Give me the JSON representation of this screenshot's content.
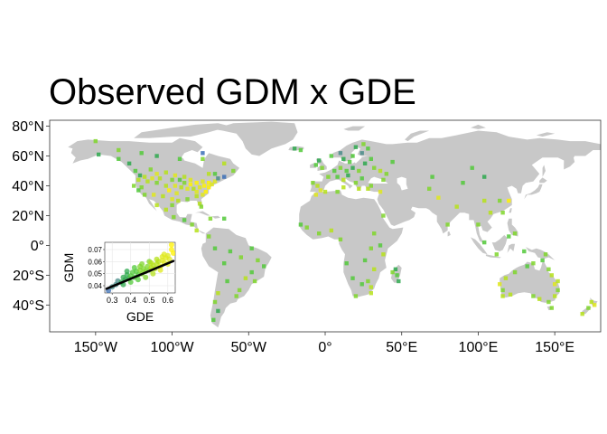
{
  "title": "Observed GDM x GDE",
  "map": {
    "lat_ticks": [
      "80°N",
      "60°N",
      "40°N",
      "20°N",
      "0°",
      "20°S",
      "40°S"
    ],
    "lat_values": [
      80,
      60,
      40,
      20,
      0,
      -20,
      -40
    ],
    "lon_ticks": [
      "150°W",
      "100°W",
      "50°W",
      "0°",
      "50°E",
      "100°E",
      "150°E"
    ],
    "lon_values": [
      -150,
      -100,
      -50,
      0,
      50,
      100,
      150
    ],
    "xlim": [
      -180,
      180
    ],
    "ylim": [
      -58,
      84
    ],
    "land_color": "#c8c8c8",
    "point_palette": [
      "#3b6fb6",
      "#4a8c8a",
      "#2ea84e",
      "#52c93a",
      "#7fd62c",
      "#b6e21a",
      "#dfe81c",
      "#fff200"
    ],
    "points": [
      [
        -124,
        50,
        3
      ],
      [
        -121,
        47,
        2
      ],
      [
        -118,
        46,
        5
      ],
      [
        -114,
        51,
        4
      ],
      [
        -110,
        48,
        6
      ],
      [
        -104,
        49,
        5
      ],
      [
        -98,
        47,
        6
      ],
      [
        -92,
        46,
        5
      ],
      [
        -88,
        44,
        6
      ],
      [
        -84,
        42,
        7
      ],
      [
        -80,
        43,
        6
      ],
      [
        -76,
        42,
        7
      ],
      [
        -72,
        43,
        6
      ],
      [
        -70,
        45,
        1
      ],
      [
        -66,
        46,
        0
      ],
      [
        -82,
        39,
        6
      ],
      [
        -86,
        38,
        5
      ],
      [
        -90,
        38,
        6
      ],
      [
        -94,
        39,
        5
      ],
      [
        -98,
        40,
        6
      ],
      [
        -104,
        40,
        5
      ],
      [
        -110,
        42,
        4
      ],
      [
        -116,
        43,
        5
      ],
      [
        -120,
        39,
        4
      ],
      [
        -122,
        37,
        3
      ],
      [
        -118,
        34,
        4
      ],
      [
        -112,
        34,
        6
      ],
      [
        -106,
        33,
        5
      ],
      [
        -100,
        31,
        6
      ],
      [
        -96,
        30,
        5
      ],
      [
        -90,
        31,
        4
      ],
      [
        -84,
        33,
        5
      ],
      [
        -80,
        34,
        6
      ],
      [
        -78,
        36,
        7
      ],
      [
        -82,
        28,
        5
      ],
      [
        -81,
        26,
        4
      ],
      [
        -97,
        35,
        6
      ],
      [
        -102,
        37,
        7
      ],
      [
        -88,
        41,
        7
      ],
      [
        -76,
        39,
        7
      ],
      [
        -74,
        41,
        6
      ],
      [
        -92,
        42,
        4
      ],
      [
        -95,
        44,
        3
      ],
      [
        -100,
        44,
        4
      ],
      [
        -108,
        45,
        5
      ],
      [
        -113,
        45,
        6
      ],
      [
        -122,
        44,
        5
      ],
      [
        -125,
        40,
        4
      ],
      [
        -79,
        40,
        7
      ],
      [
        -84,
        36,
        6
      ],
      [
        -128,
        55,
        2
      ],
      [
        -135,
        58,
        3
      ],
      [
        -148,
        61,
        2
      ],
      [
        -120,
        62,
        3
      ],
      [
        -110,
        60,
        2
      ],
      [
        -95,
        58,
        3
      ],
      [
        -80,
        58,
        4
      ],
      [
        -66,
        55,
        5
      ],
      [
        -60,
        50,
        4
      ],
      [
        -76,
        48,
        5
      ],
      [
        -72,
        48,
        3
      ],
      [
        -135,
        64,
        4
      ],
      [
        -150,
        70,
        4
      ],
      [
        -80,
        62,
        0
      ],
      [
        -104,
        24,
        5
      ],
      [
        -99,
        19,
        4
      ],
      [
        -92,
        17,
        3
      ],
      [
        -87,
        14,
        4
      ],
      [
        -84,
        10,
        5
      ],
      [
        -75,
        18,
        4
      ],
      [
        -66,
        18,
        3
      ],
      [
        -100,
        27,
        4
      ],
      [
        -110,
        27,
        5
      ],
      [
        -76,
        6,
        4
      ],
      [
        -72,
        -2,
        3
      ],
      [
        -62,
        -4,
        3
      ],
      [
        -55,
        -8,
        4
      ],
      [
        -48,
        -2,
        3
      ],
      [
        -44,
        -10,
        4
      ],
      [
        -40,
        -14,
        3
      ],
      [
        -48,
        -18,
        3
      ],
      [
        -52,
        -22,
        5
      ],
      [
        -46,
        -24,
        4
      ],
      [
        -56,
        -30,
        4
      ],
      [
        -64,
        -24,
        3
      ],
      [
        -70,
        -32,
        5
      ],
      [
        -72,
        -38,
        4
      ],
      [
        -70,
        -44,
        2
      ],
      [
        -73,
        -50,
        3
      ],
      [
        -58,
        -34,
        4
      ],
      [
        -66,
        -12,
        3
      ],
      [
        -5,
        40,
        5
      ],
      [
        -8,
        42,
        4
      ],
      [
        -3,
        37,
        6
      ],
      [
        2,
        46,
        4
      ],
      [
        6,
        50,
        3
      ],
      [
        10,
        52,
        4
      ],
      [
        14,
        50,
        3
      ],
      [
        18,
        52,
        2
      ],
      [
        22,
        50,
        4
      ],
      [
        24,
        45,
        3
      ],
      [
        20,
        42,
        4
      ],
      [
        12,
        44,
        5
      ],
      [
        8,
        46,
        3
      ],
      [
        15,
        47,
        2
      ],
      [
        26,
        55,
        2
      ],
      [
        30,
        58,
        3
      ],
      [
        18,
        60,
        3
      ],
      [
        12,
        58,
        2
      ],
      [
        24,
        62,
        1
      ],
      [
        28,
        65,
        3
      ],
      [
        20,
        66,
        2
      ],
      [
        16,
        56,
        3
      ],
      [
        -2,
        52,
        4
      ],
      [
        -6,
        54,
        3
      ],
      [
        -4,
        57,
        2
      ],
      [
        32,
        52,
        4
      ],
      [
        36,
        50,
        5
      ],
      [
        40,
        48,
        4
      ],
      [
        44,
        56,
        3
      ],
      [
        30,
        40,
        4
      ],
      [
        28,
        38,
        5
      ],
      [
        36,
        36,
        6
      ],
      [
        22,
        38,
        5
      ],
      [
        -16,
        64,
        3
      ],
      [
        -20,
        65,
        2
      ],
      [
        4,
        60,
        3
      ],
      [
        10,
        62,
        1
      ],
      [
        25,
        68,
        4
      ],
      [
        0,
        36,
        5
      ],
      [
        8,
        36,
        4
      ],
      [
        -6,
        34,
        6
      ],
      [
        12,
        39,
        5
      ],
      [
        38,
        44,
        4
      ],
      [
        68,
        38,
        4
      ],
      [
        70,
        46,
        3
      ],
      [
        74,
        32,
        6
      ],
      [
        80,
        14,
        4
      ],
      [
        86,
        26,
        5
      ],
      [
        90,
        42,
        3
      ],
      [
        96,
        52,
        3
      ],
      [
        104,
        46,
        2
      ],
      [
        104,
        30,
        5
      ],
      [
        108,
        22,
        5
      ],
      [
        114,
        30,
        4
      ],
      [
        116,
        22,
        4
      ],
      [
        120,
        30,
        7
      ],
      [
        100,
        14,
        4
      ],
      [
        104,
        2,
        3
      ],
      [
        112,
        -6,
        4
      ],
      [
        120,
        6,
        3
      ],
      [
        124,
        8,
        4
      ],
      [
        130,
        -4,
        3
      ],
      [
        38,
        20,
        4
      ],
      [
        32,
        8,
        4
      ],
      [
        36,
        0,
        3
      ],
      [
        38,
        -6,
        5
      ],
      [
        30,
        -2,
        4
      ],
      [
        26,
        -10,
        3
      ],
      [
        32,
        -16,
        5
      ],
      [
        28,
        -24,
        4
      ],
      [
        30,
        -28,
        5
      ],
      [
        20,
        -34,
        4
      ],
      [
        18,
        -22,
        3
      ],
      [
        14,
        -12,
        3
      ],
      [
        10,
        4,
        4
      ],
      [
        4,
        10,
        5
      ],
      [
        -4,
        8,
        4
      ],
      [
        -12,
        12,
        4
      ],
      [
        -16,
        14,
        3
      ],
      [
        46,
        -16,
        2
      ],
      [
        47,
        -20,
        3
      ],
      [
        48,
        -24,
        2
      ],
      [
        44,
        -18,
        4
      ],
      [
        30,
        -32,
        5
      ],
      [
        24,
        -26,
        3
      ],
      [
        146,
        -16,
        4
      ],
      [
        148,
        -20,
        5
      ],
      [
        150,
        -26,
        6
      ],
      [
        152,
        -30,
        4
      ],
      [
        150,
        -34,
        5
      ],
      [
        146,
        -38,
        4
      ],
      [
        140,
        -36,
        5
      ],
      [
        136,
        -34,
        4
      ],
      [
        116,
        -34,
        5
      ],
      [
        116,
        -30,
        4
      ],
      [
        118,
        -22,
        5
      ],
      [
        124,
        -18,
        4
      ],
      [
        132,
        -14,
        3
      ],
      [
        136,
        -12,
        4
      ],
      [
        142,
        -10,
        3
      ],
      [
        144,
        -6,
        4
      ],
      [
        174,
        -38,
        5
      ],
      [
        172,
        -42,
        4
      ],
      [
        168,
        -46,
        5
      ],
      [
        176,
        -40,
        6
      ],
      [
        152,
        -24,
        5
      ],
      [
        148,
        -42,
        4
      ],
      [
        114,
        -26,
        6
      ],
      [
        121,
        -33,
        5
      ]
    ]
  },
  "inset": {
    "xlabel": "GDE",
    "ylabel": "GDM",
    "x_ticks": [
      "0.3",
      "0.4",
      "0.5",
      "0.6"
    ],
    "y_ticks": [
      "0.04",
      "0.05",
      "0.06",
      "0.07"
    ]
  },
  "chart_data": {
    "type": "scatter",
    "title": "",
    "xlabel": "GDE",
    "ylabel": "GDM",
    "xlim": [
      0.26,
      0.64
    ],
    "ylim": [
      0.034,
      0.076
    ],
    "trend": {
      "x": [
        0.27,
        0.63
      ],
      "y": [
        0.0375,
        0.0605
      ]
    },
    "x": [
      0.28,
      0.3,
      0.32,
      0.33,
      0.35,
      0.36,
      0.37,
      0.38,
      0.39,
      0.4,
      0.41,
      0.42,
      0.43,
      0.44,
      0.45,
      0.46,
      0.47,
      0.48,
      0.49,
      0.5,
      0.51,
      0.52,
      0.53,
      0.54,
      0.55,
      0.56,
      0.57,
      0.58,
      0.59,
      0.6,
      0.61,
      0.62,
      0.63,
      0.38,
      0.42,
      0.46,
      0.5,
      0.54,
      0.58,
      0.44,
      0.48,
      0.52,
      0.56,
      0.6,
      0.4,
      0.36,
      0.62,
      0.57,
      0.45,
      0.51
    ],
    "y": [
      0.036,
      0.039,
      0.041,
      0.044,
      0.043,
      0.047,
      0.045,
      0.049,
      0.046,
      0.048,
      0.051,
      0.047,
      0.052,
      0.049,
      0.053,
      0.05,
      0.054,
      0.052,
      0.056,
      0.053,
      0.055,
      0.057,
      0.054,
      0.058,
      0.06,
      0.056,
      0.061,
      0.059,
      0.063,
      0.065,
      0.062,
      0.07,
      0.067,
      0.052,
      0.055,
      0.058,
      0.06,
      0.062,
      0.066,
      0.045,
      0.047,
      0.05,
      0.053,
      0.058,
      0.043,
      0.041,
      0.074,
      0.064,
      0.056,
      0.059
    ]
  }
}
